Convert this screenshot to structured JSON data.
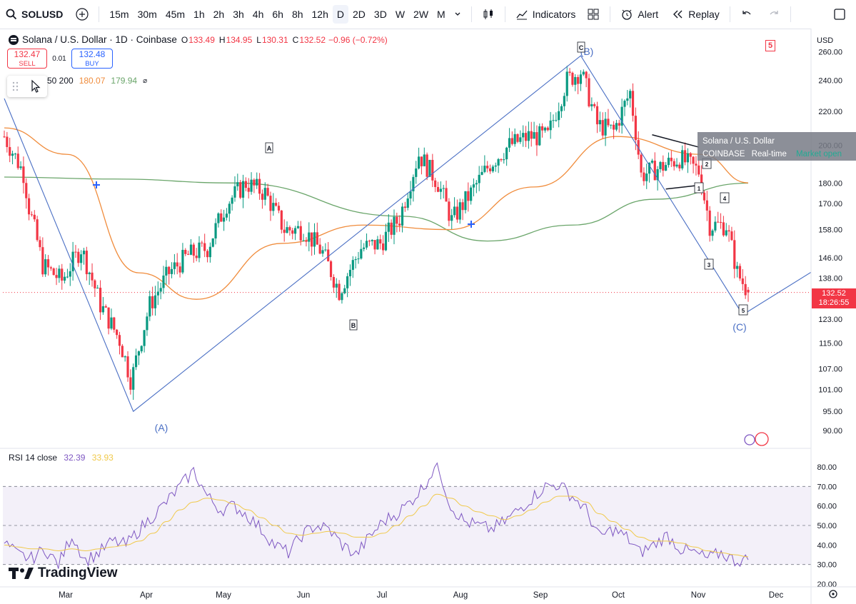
{
  "toolbar": {
    "symbol": "SOLUSD",
    "intervals": [
      "15m",
      "30m",
      "45m",
      "1h",
      "2h",
      "3h",
      "4h",
      "6h",
      "8h",
      "12h",
      "D",
      "2D",
      "3D",
      "W",
      "2W",
      "M"
    ],
    "active_interval": "D",
    "indicators_label": "Indicators",
    "alert_label": "Alert",
    "replay_label": "Replay"
  },
  "legend": {
    "title": "Solana / U.S. Dollar · 1D · Coinbase",
    "open_k": "O",
    "open": "133.49",
    "high_k": "H",
    "high": "134.95",
    "low_k": "L",
    "low": "130.31",
    "close_k": "C",
    "close": "132.52",
    "change": "−0.96 (−0.72%)"
  },
  "trade": {
    "sell_price": "132.47",
    "sell_label": "SELL",
    "spread": "0.01",
    "buy_price": "132.48",
    "buy_label": "BUY"
  },
  "ma_legend": {
    "periods": "50 200",
    "ma50": "180.07",
    "ma200": "179.94"
  },
  "rsi_legend": {
    "label": "RSI 14 close",
    "rsi": "32.39",
    "ma": "33.93"
  },
  "tooltip": {
    "title": "Solana / U.S. Dollar",
    "exchange": "COINBASE",
    "feed": "Real-time",
    "status": "Market open"
  },
  "price_tag": {
    "price": "132.52",
    "countdown": "18:26:55"
  },
  "badge": "5",
  "currency": "USD",
  "logo_text": "TradingView",
  "colors": {
    "up": "#089981",
    "down": "#f23645",
    "ma50": "#f08c3c",
    "ma200": "#6aa56a",
    "wave": "#4a6fc4",
    "rsi": "#7e57c2",
    "rsi_ma": "#f0c94a"
  },
  "chart_data": {
    "type": "candlestick",
    "title": "Solana / U.S. Dollar · 1D · Coinbase",
    "price_axis": {
      "ticks": [
        260.0,
        240.0,
        220.0,
        200.0,
        180.0,
        170.0,
        158.0,
        146.0,
        138.0,
        123.0,
        115.0,
        107.0,
        101.0,
        95.0,
        90.0
      ],
      "ylim": [
        86,
        274
      ],
      "scale": "log"
    },
    "time_axis": {
      "labels": [
        "Mar",
        "Apr",
        "May",
        "Jun",
        "Jul",
        "Aug",
        "Sep",
        "Oct",
        "Nov",
        "Dec"
      ]
    },
    "candles_daily_close_approx": [
      {
        "date": "Feb 20",
        "close": 205
      },
      {
        "date": "Feb 27",
        "close": 185
      },
      {
        "date": "Mar 1",
        "close": 168
      },
      {
        "date": "Mar 6",
        "close": 143
      },
      {
        "date": "Mar 13",
        "close": 137
      },
      {
        "date": "Mar 20",
        "close": 150
      },
      {
        "date": "Mar 27",
        "close": 128
      },
      {
        "date": "Apr 3",
        "close": 116
      },
      {
        "date": "Apr 7",
        "close": 104
      },
      {
        "date": "Apr 8",
        "close": 106
      },
      {
        "date": "Apr 14",
        "close": 128
      },
      {
        "date": "Apr 21",
        "close": 140
      },
      {
        "date": "Apr 28",
        "close": 147
      },
      {
        "date": "May 5",
        "close": 150
      },
      {
        "date": "May 12",
        "close": 170
      },
      {
        "date": "May 19",
        "close": 180
      },
      {
        "date": "May 26",
        "close": 175
      },
      {
        "date": "Jun 2",
        "close": 158
      },
      {
        "date": "Jun 9",
        "close": 158
      },
      {
        "date": "Jun 16",
        "close": 148
      },
      {
        "date": "Jun 22",
        "close": 133
      },
      {
        "date": "Jun 30",
        "close": 150
      },
      {
        "date": "Jul 7",
        "close": 152
      },
      {
        "date": "Jul 14",
        "close": 163
      },
      {
        "date": "Jul 21",
        "close": 195
      },
      {
        "date": "Jul 28",
        "close": 180
      },
      {
        "date": "Aug 2",
        "close": 162
      },
      {
        "date": "Aug 9",
        "close": 175
      },
      {
        "date": "Aug 16",
        "close": 190
      },
      {
        "date": "Aug 23",
        "close": 200
      },
      {
        "date": "Aug 30",
        "close": 205
      },
      {
        "date": "Sep 6",
        "close": 205
      },
      {
        "date": "Sep 13",
        "close": 240
      },
      {
        "date": "Sep 18",
        "close": 246
      },
      {
        "date": "Sep 24",
        "close": 212
      },
      {
        "date": "Sep 30",
        "close": 208
      },
      {
        "date": "Oct 6",
        "close": 232
      },
      {
        "date": "Oct 10",
        "close": 184
      },
      {
        "date": "Oct 17",
        "close": 188
      },
      {
        "date": "Oct 24",
        "close": 193
      },
      {
        "date": "Oct 31",
        "close": 186
      },
      {
        "date": "Nov 4",
        "close": 160
      },
      {
        "date": "Nov 10",
        "close": 160
      },
      {
        "date": "Nov 14",
        "close": 140
      },
      {
        "date": "Nov 18",
        "close": 132.52
      }
    ],
    "ma50": [
      {
        "date": "Feb 20",
        "v": 210
      },
      {
        "date": "Mar 15",
        "v": 195
      },
      {
        "date": "Apr 10",
        "v": 140
      },
      {
        "date": "May 1",
        "v": 130
      },
      {
        "date": "Jun 1",
        "v": 152
      },
      {
        "date": "Jul 1",
        "v": 160
      },
      {
        "date": "Aug 1",
        "v": 158
      },
      {
        "date": "Sep 1",
        "v": 178
      },
      {
        "date": "Oct 1",
        "v": 205
      },
      {
        "date": "Nov 1",
        "v": 195
      },
      {
        "date": "Nov 18",
        "v": 180.07
      }
    ],
    "ma200": [
      {
        "date": "Feb 20",
        "v": 183
      },
      {
        "date": "Apr 1",
        "v": 182
      },
      {
        "date": "May 15",
        "v": 180
      },
      {
        "date": "Jul 15",
        "v": 164
      },
      {
        "date": "Aug 15",
        "v": 153
      },
      {
        "date": "Sep 15",
        "v": 160
      },
      {
        "date": "Oct 15",
        "v": 172
      },
      {
        "date": "Nov 18",
        "v": 179.94
      }
    ],
    "annotations": {
      "waves": [
        "(A)",
        "(B)",
        "(C)"
      ],
      "letters": [
        "A",
        "B",
        "C"
      ],
      "numbers": [
        "1",
        "2",
        "3",
        "4",
        "5"
      ]
    },
    "rsi": {
      "label": "RSI 14 close",
      "value": 32.39,
      "ma_value": 33.93,
      "axis_ticks": [
        80.0,
        70.0,
        60.0,
        50.0,
        40.0,
        30.0,
        20.0
      ],
      "bands": [
        30,
        50,
        70
      ],
      "values": [
        41,
        35,
        33,
        38,
        30,
        45,
        32,
        36,
        42,
        40,
        48,
        55,
        62,
        70,
        78,
        65,
        58,
        60,
        55,
        48,
        40,
        36,
        45,
        50,
        48,
        40,
        35,
        44,
        52,
        56,
        62,
        70,
        82,
        60,
        52,
        50,
        48,
        52,
        58,
        64,
        70,
        71,
        65,
        58,
        44,
        48,
        44,
        36,
        40,
        45,
        38,
        36,
        33,
        36,
        32,
        32.39
      ],
      "ma": [
        40,
        39,
        38,
        38,
        37,
        38,
        37,
        38,
        39,
        40,
        42,
        46,
        52,
        58,
        62,
        64,
        63,
        61,
        58,
        54,
        50,
        46,
        45,
        46,
        47,
        46,
        44,
        44,
        46,
        50,
        55,
        60,
        66,
        64,
        60,
        57,
        55,
        53,
        55,
        58,
        62,
        65,
        65,
        62,
        56,
        52,
        48,
        44,
        42,
        42,
        41,
        39,
        37,
        36,
        35,
        33.93
      ]
    }
  }
}
